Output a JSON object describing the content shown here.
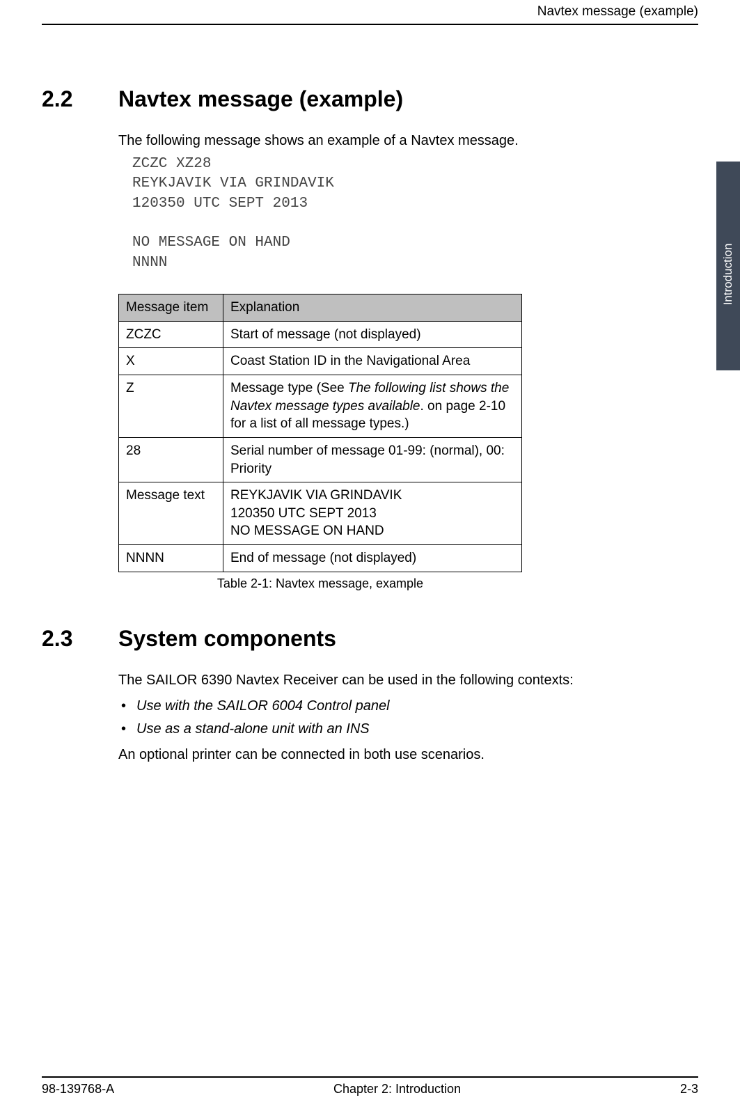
{
  "header": {
    "title": "Navtex message (example)"
  },
  "sideTab": {
    "label": "Introduction"
  },
  "section22": {
    "number": "2.2",
    "title": "Navtex message (example)",
    "intro": "The following message shows an example of a Navtex message.",
    "messageBlock": "ZCZC XZ28\nREYKJAVIK VIA GRINDAVIK\n120350 UTC SEPT 2013\n\nNO MESSAGE ON HAND\nNNNN"
  },
  "table": {
    "headers": [
      "Message item",
      "Explanation"
    ],
    "rows": [
      {
        "item": "ZCZC",
        "explPlain": "Start of message (not displayed)"
      },
      {
        "item": "X",
        "explPlain": "Coast Station ID in the Navigational Area"
      },
      {
        "item": "Z",
        "explPre": "Message type (See ",
        "explItalic": "The following list shows the Navtex message types available",
        "explPost": ". on page 2-10 for a list of all message types.)"
      },
      {
        "item": "28",
        "explPlain": "Serial number of message 01-99: (normal), 00: Priority"
      },
      {
        "item": "Message text",
        "line1": "REYKJAVIK VIA GRINDAVIK",
        "line2": "120350 UTC SEPT 2013",
        "line3": "NO MESSAGE ON HAND"
      },
      {
        "item": "NNNN",
        "explPlain": "End of message (not displayed)"
      }
    ],
    "caption": "Table 2-1: Navtex message, example"
  },
  "section23": {
    "number": "2.3",
    "title": "System components",
    "intro": "The SAILOR 6390 Navtex Receiver can be used in the following contexts:",
    "bullets": [
      "Use with the SAILOR 6004 Control panel",
      "Use as a stand-alone unit with an INS"
    ],
    "closing": "An optional printer can be connected in both use scenarios."
  },
  "footer": {
    "left": "98-139768-A",
    "center": "Chapter 2:  Introduction",
    "right": "2-3"
  }
}
